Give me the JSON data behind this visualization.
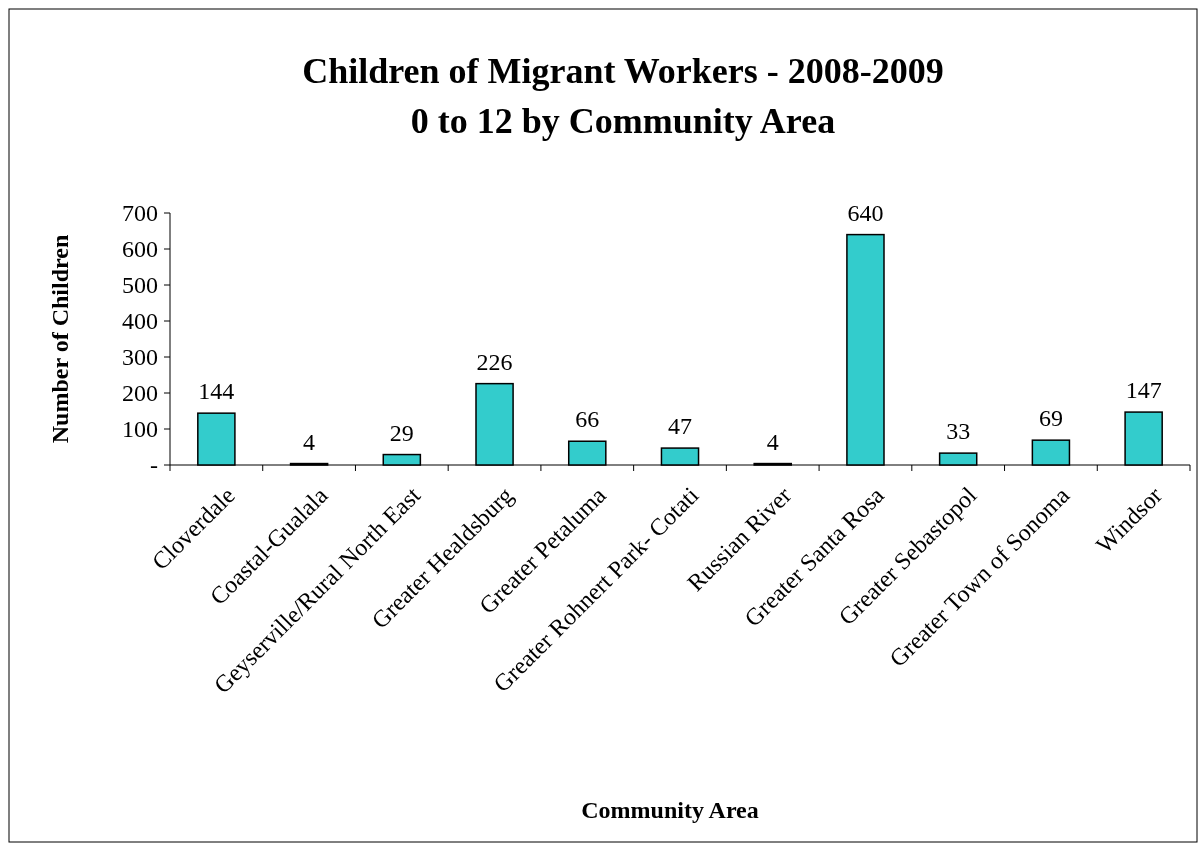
{
  "chart_data": {
    "type": "bar",
    "title": "Children of Migrant Workers - 2008-2009",
    "subtitle": "0 to 12 by Community Area",
    "xlabel": "Community Area",
    "ylabel": "Number of Children",
    "categories": [
      "Cloverdale",
      "Coastal-Gualala",
      "Geyserville/Rural North East",
      "Greater Healdsburg",
      "Greater Petaluma",
      "Greater Rohnert Park- Cotati",
      "Russian River",
      "Greater Santa Rosa",
      "Greater Sebastopol",
      "Greater Town of Sonoma",
      "Windsor"
    ],
    "values": [
      144,
      4,
      29,
      226,
      66,
      47,
      4,
      640,
      33,
      69,
      147
    ],
    "color": "#33cccc",
    "ylim": [
      0,
      700
    ],
    "yticks": [
      {
        "value": 0,
        "label": "-"
      },
      100,
      200,
      300,
      400,
      500,
      600,
      700
    ],
    "data_labels": true
  }
}
